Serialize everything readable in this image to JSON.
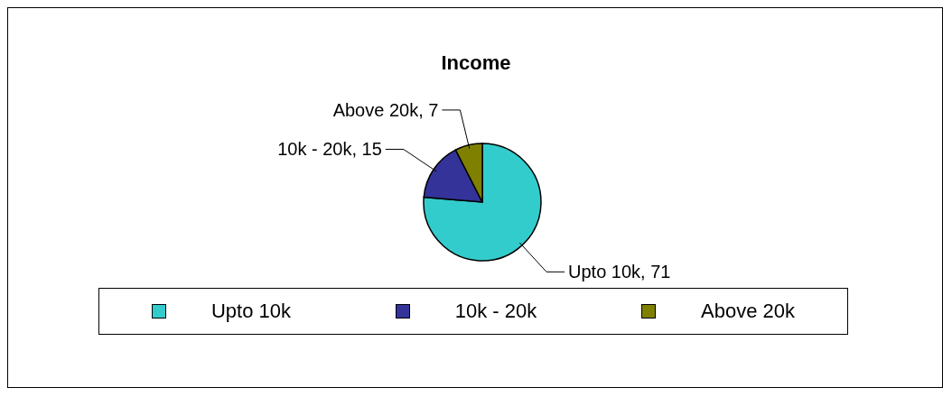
{
  "chart_data": {
    "type": "pie",
    "title": "Income",
    "categories": [
      "Upto 10k",
      "10k - 20k",
      "Above 20k"
    ],
    "values": [
      71,
      15,
      7
    ],
    "value_labels": [
      "Upto 10k, 71",
      "10k - 20k, 15",
      "Above 20k, 7"
    ],
    "colors": [
      "#33cccc",
      "#333399",
      "#808000"
    ],
    "legend": "bottom"
  }
}
